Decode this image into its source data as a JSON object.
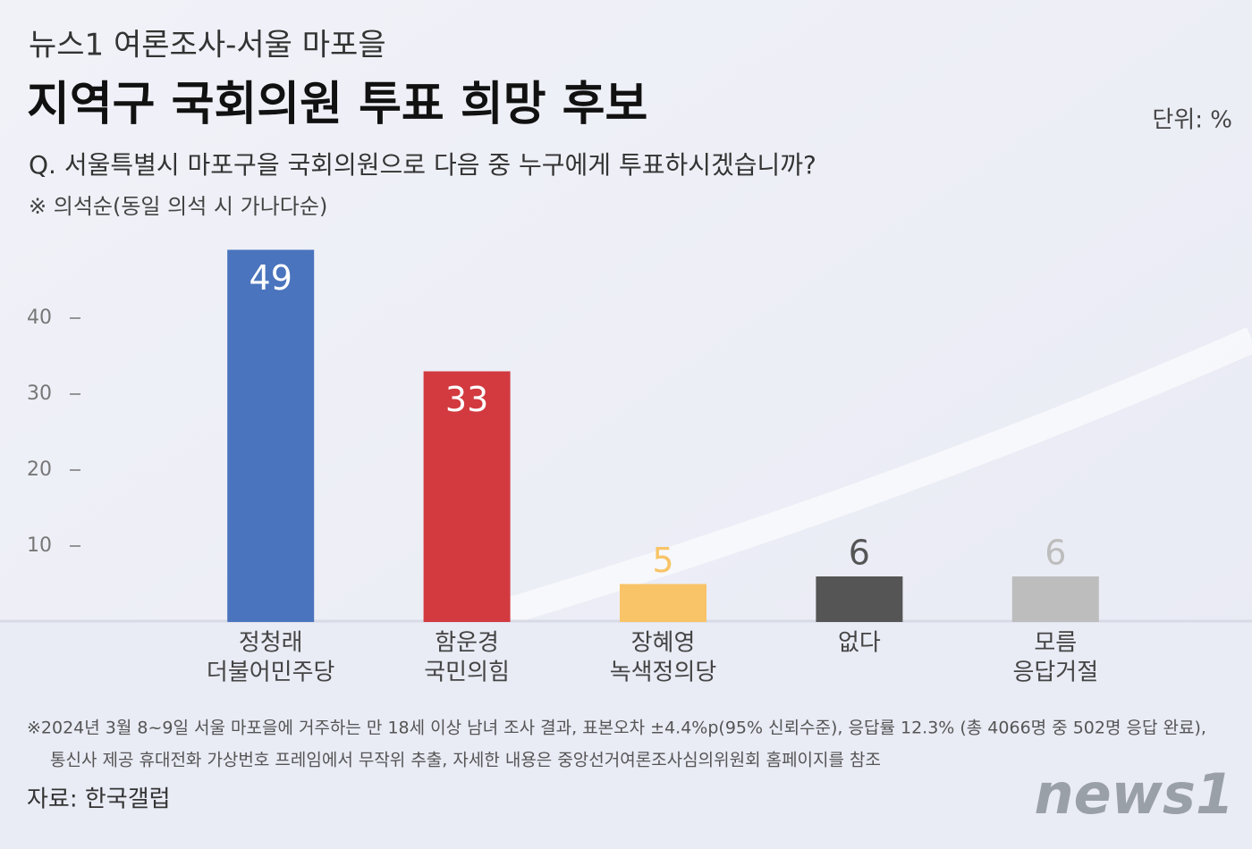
{
  "chart_data": {
    "type": "bar",
    "subtitle": "뉴스1 여론조사-서울 마포을",
    "title": "지역구 국회의원 투표 희망 후보",
    "unit": "단위: %",
    "question": "Q. 서울특별시 마포구을 국회의원으로 다음 중 누구에게 투표하시겠습니까?",
    "note": "※ 의석순(동일 의석 시 가나다순)",
    "categories": [
      [
        "정청래",
        "더불어민주당"
      ],
      [
        "함운경",
        "국민의힘"
      ],
      [
        "장혜영",
        "녹색정의당"
      ],
      [
        "없다"
      ],
      [
        "모름",
        "응답거절"
      ]
    ],
    "values": [
      49,
      33,
      5,
      6,
      6
    ],
    "colors": [
      "#4a74bd",
      "#d23a40",
      "#f8c467",
      "#555555",
      "#bdbdbd"
    ],
    "ylim": [
      0,
      50
    ],
    "yticks": [
      10,
      20,
      30,
      40
    ],
    "footnotes": [
      "※2024년 3월 8~9일 서울 마포을에 거주하는 만 18세 이상 남녀 조사 결과, 표본오차 ±4.4%p(95% 신뢰수준), 응답률 12.3% (총 4066명 중 502명 응답 완료),",
      "통신사 제공 휴대전화 가상번호 프레임에서 무작위 추출, 자세한 내용은 중앙선거여론조사심의위원회 홈페이지를 참조"
    ],
    "source": "자료: 한국갤럽",
    "logo": "news1"
  }
}
